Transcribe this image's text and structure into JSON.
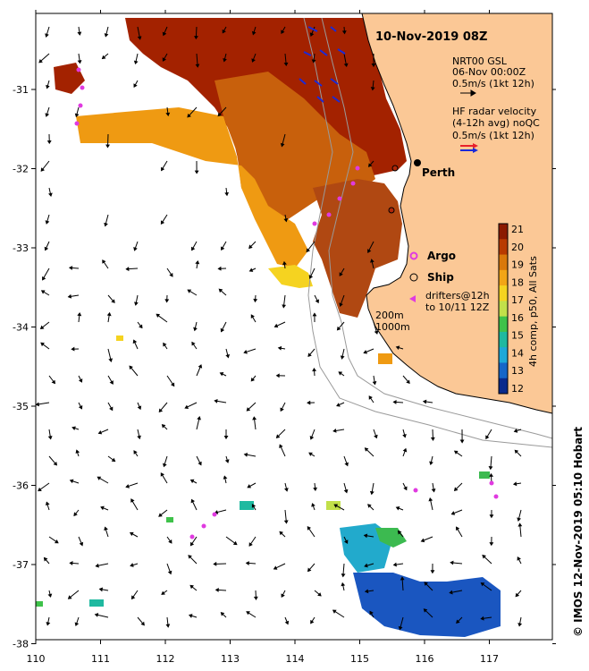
{
  "title": "10-Nov-2019 08Z",
  "city": "Perth",
  "credit": "© IMOS 12-Nov-2019 05:10 Hobart",
  "legend": {
    "model_line1": "NRT00 GSL",
    "model_line2": "06-Nov 00:00Z",
    "model_line3": "0.5m/s (1kt 12h)",
    "radar_line1": "HF radar velocity",
    "radar_line2": "(4-12h avg) noQC",
    "radar_line3": "0.5m/s (1kt 12h)",
    "argo": "Argo",
    "ship": "Ship",
    "drifters_line1": "drifters@12h",
    "drifters_line2": "to 10/11 12Z",
    "contour_200": "200m",
    "contour_1000": "1000m"
  },
  "colorbar": {
    "title": "4h comp, p50, All Sats",
    "ticks": [
      "21",
      "20",
      "19",
      "18",
      "17",
      "16",
      "15",
      "14",
      "13",
      "12"
    ],
    "colors": [
      "#8b1a00",
      "#b83a00",
      "#d9780a",
      "#f2a516",
      "#f5d320",
      "#c2e04a",
      "#3fc24a",
      "#1fb9a0",
      "#1ea8d8",
      "#1666c8",
      "#0a2a8c"
    ]
  },
  "axes": {
    "x_ticks": [
      "110",
      "111",
      "112",
      "113",
      "114",
      "115",
      "116",
      "117"
    ],
    "y_ticks": [
      "-31",
      "-32",
      "-33",
      "-34",
      "-35",
      "-36",
      "-37",
      "-38"
    ]
  },
  "colors": {
    "land": "#fbc896",
    "coast": "#000000",
    "contour": "#9a9a9a",
    "model_arrow": "#000000",
    "radar_red": "#e8202a",
    "radar_blue": "#1a2ad8",
    "drifter": "#e03ae0"
  }
}
